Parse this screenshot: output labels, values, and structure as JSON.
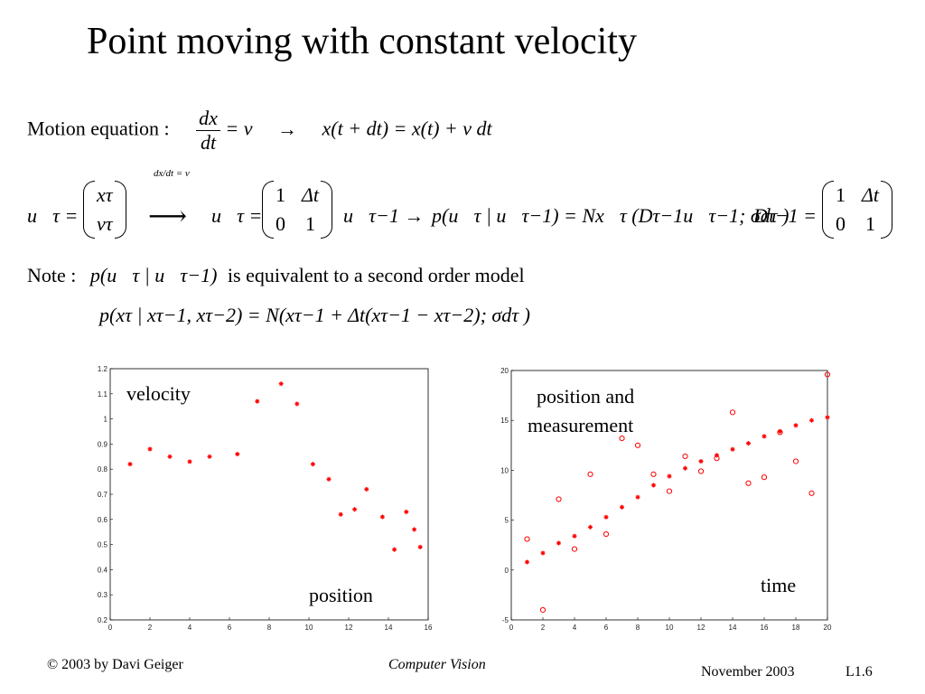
{
  "title": "Point moving with constant velocity",
  "motion": {
    "label": "Motion equation :",
    "frac_num": "dx",
    "frac_den": "dt",
    "rhs": "= v",
    "arrow": "→",
    "expr": "x(t + dt) = x(t) + v dt"
  },
  "state_row": {
    "u_tau": "u⃗τ =",
    "x_tau": "xτ",
    "v_tau": "vτ",
    "arrow_label": "dx/dt = v",
    "arrow": "⟶",
    "u_tau2": "u⃗τ =",
    "m11": "1",
    "m12": "Δt",
    "m21": "0",
    "m22": "1",
    "u_prev": "u⃗τ−1 →",
    "prob": "p(u⃗τ | u⃗τ−1) = Nx⃗τ (Dτ−1u⃗τ−1; σdτ )",
    "D_label": "Dτ−1 =",
    "d11": "1",
    "d12": "Δt",
    "d21": "0",
    "d22": "1"
  },
  "note": {
    "label": "Note :",
    "expr": "p(u⃗τ | u⃗τ−1)",
    "text": "is equivalent to a second order model",
    "second_line": "p(xτ | xτ−1, xτ−2) = N(xτ−1 + Δt(xτ−1 − xτ−2); σdτ )"
  },
  "chart_data": [
    {
      "type": "scatter",
      "title": "",
      "annotations": [
        "velocity",
        "position"
      ],
      "xlim": [
        0,
        16
      ],
      "ylim": [
        0.2,
        1.2
      ],
      "xticks": [
        0,
        2,
        4,
        6,
        8,
        10,
        12,
        14,
        16
      ],
      "yticks": [
        0.2,
        0.3,
        0.4,
        0.5,
        0.6,
        0.7,
        0.8,
        0.9,
        1,
        1.1,
        1.2
      ],
      "marker_color": "#ff0000",
      "series": [
        {
          "marker": "star",
          "x": [
            1,
            2,
            3,
            4,
            5,
            6.4,
            7.4,
            8.6,
            9.4,
            10.2,
            11,
            11.6,
            12.3,
            12.9,
            13.7,
            14.3,
            14.9,
            15.6,
            15.3
          ],
          "y": [
            0.82,
            0.88,
            0.85,
            0.83,
            0.85,
            0.86,
            1.07,
            1.14,
            1.06,
            0.82,
            0.76,
            0.62,
            0.64,
            0.72,
            0.61,
            0.48,
            0.63,
            0.49,
            0.56
          ]
        }
      ]
    },
    {
      "type": "scatter",
      "title": "",
      "annotations": [
        "position and",
        "measurement",
        "time"
      ],
      "xlim": [
        0,
        20
      ],
      "ylim": [
        -5,
        20
      ],
      "xticks": [
        0,
        2,
        4,
        6,
        8,
        10,
        12,
        14,
        16,
        18,
        20
      ],
      "yticks": [
        -5,
        0,
        5,
        10,
        15,
        20
      ],
      "marker_color": "#ff0000",
      "series": [
        {
          "marker": "star",
          "x": [
            1,
            2,
            3,
            4,
            5,
            6,
            7,
            8,
            9,
            10,
            11,
            12,
            13,
            14,
            15,
            16,
            17,
            18,
            19,
            20
          ],
          "y": [
            0.8,
            1.7,
            2.7,
            3.4,
            4.3,
            5.3,
            6.3,
            7.3,
            8.5,
            9.4,
            10.2,
            10.9,
            11.5,
            12.1,
            12.7,
            13.4,
            13.9,
            14.5,
            15.0,
            15.3
          ]
        },
        {
          "marker": "circle",
          "x": [
            1,
            2,
            3,
            4,
            5,
            6,
            7,
            8,
            9,
            10,
            11,
            12,
            13,
            14,
            15,
            16,
            17,
            18,
            19,
            20
          ],
          "y": [
            3.1,
            -4.0,
            7.1,
            2.1,
            9.6,
            3.6,
            13.2,
            12.5,
            9.6,
            7.9,
            11.4,
            9.9,
            11.2,
            15.8,
            8.7,
            9.3,
            13.8,
            10.9,
            7.7,
            19.6
          ]
        }
      ]
    }
  ],
  "footer": {
    "copyright": "© 2003 by Davi Geiger",
    "course": "Computer Vision",
    "date": "November 2003",
    "slide": "L1.6"
  }
}
